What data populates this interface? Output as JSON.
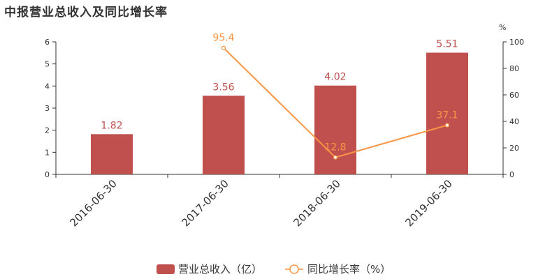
{
  "chart_data": {
    "type": "bar",
    "title": "中报营业总收入及同比增长率",
    "categories": [
      "2016-06-30",
      "2017-06-30",
      "2018-06-30",
      "2019-06-30"
    ],
    "series": [
      {
        "name": "营业总收入（亿）",
        "kind": "bar",
        "axis": "left",
        "color": "#c0504d",
        "values": [
          1.82,
          3.56,
          4.02,
          5.51
        ]
      },
      {
        "name": "同比增长率（%）",
        "kind": "line",
        "axis": "right",
        "color": "#f79646",
        "values": [
          null,
          95.4,
          12.8,
          37.1
        ]
      }
    ],
    "y_left": {
      "ylim": [
        0,
        6
      ],
      "ticks": [
        0,
        1,
        2,
        3,
        4,
        5,
        6
      ]
    },
    "y_right": {
      "unit": "%",
      "ylim": [
        0,
        100
      ],
      "ticks": [
        0,
        20,
        40,
        60,
        80,
        100
      ]
    },
    "legend": "bottom-center",
    "grid": false
  }
}
